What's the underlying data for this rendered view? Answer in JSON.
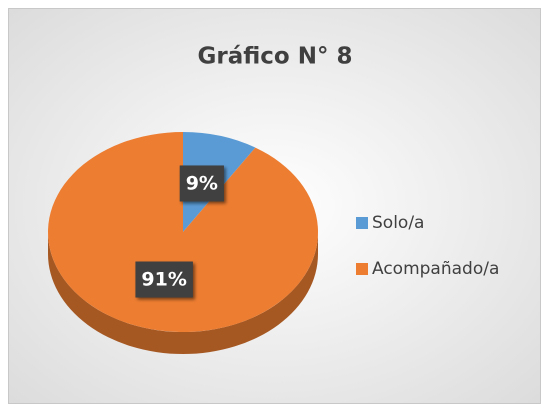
{
  "chart_data": {
    "type": "pie",
    "title": "Gráfico N° 8",
    "categories": [
      "Solo/a",
      "Acompañado/a"
    ],
    "values": [
      9,
      91
    ],
    "value_labels": [
      "9%",
      "91%"
    ],
    "colors": [
      "#5b9bd5",
      "#ed7d31"
    ],
    "legend": "right"
  }
}
